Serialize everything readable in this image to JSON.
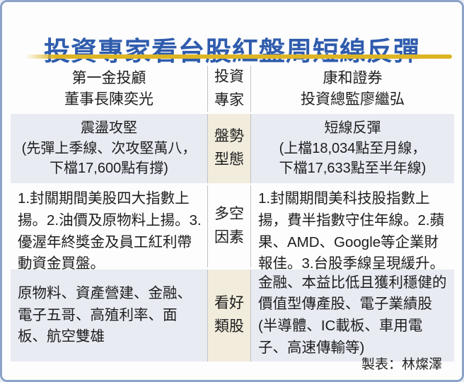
{
  "chart_data": {
    "type": "table",
    "title": "投資專家看台股紅盤周短線反彈",
    "header": {
      "left": "第一金投顧\n董事長陳奕光",
      "middle": "投資專家",
      "right": "康和證券\n投資總監廖繼弘"
    },
    "rows": [
      {
        "label": "盤勢型態",
        "left": "震盪攻堅\n(先彈上季線、次攻堅萬八，\n下檔17,600點有撐)",
        "right": "短線反彈\n(上檔18,034點至月線，\n下檔17,633點至半年線)"
      },
      {
        "label": "多空因素",
        "left": "1.封關期間美股四大指數上揚。2.油價及原物料上揚。3.優渥年終獎金及員工紅利帶動資金買盤。",
        "right": "1.封關期間美科技股指數上揚，費半指數守住年線。2.蘋果、AMD、Google等企業財報佳。3.台股季線呈現緩升。"
      },
      {
        "label": "看好類股",
        "left": "原物料、資產營建、金融、電子五哥、高殖利率、面板、航空雙雄",
        "right": "金融、本益比低且獲利穩健的價值型傳產股、電子業績股(半導體、IC載板、車用電子、高速傳輸等)"
      }
    ],
    "credit": "製表：林燦澤",
    "colors": {
      "title_text": "#2f5cad",
      "rule_yellow": "#ddb424",
      "frame_border": "#8ba3c7",
      "cell_tint_blue": "#e8ebf2",
      "cell_tint_cream": "#f1ecdc",
      "divider_gray": "#c2c2c2"
    }
  }
}
